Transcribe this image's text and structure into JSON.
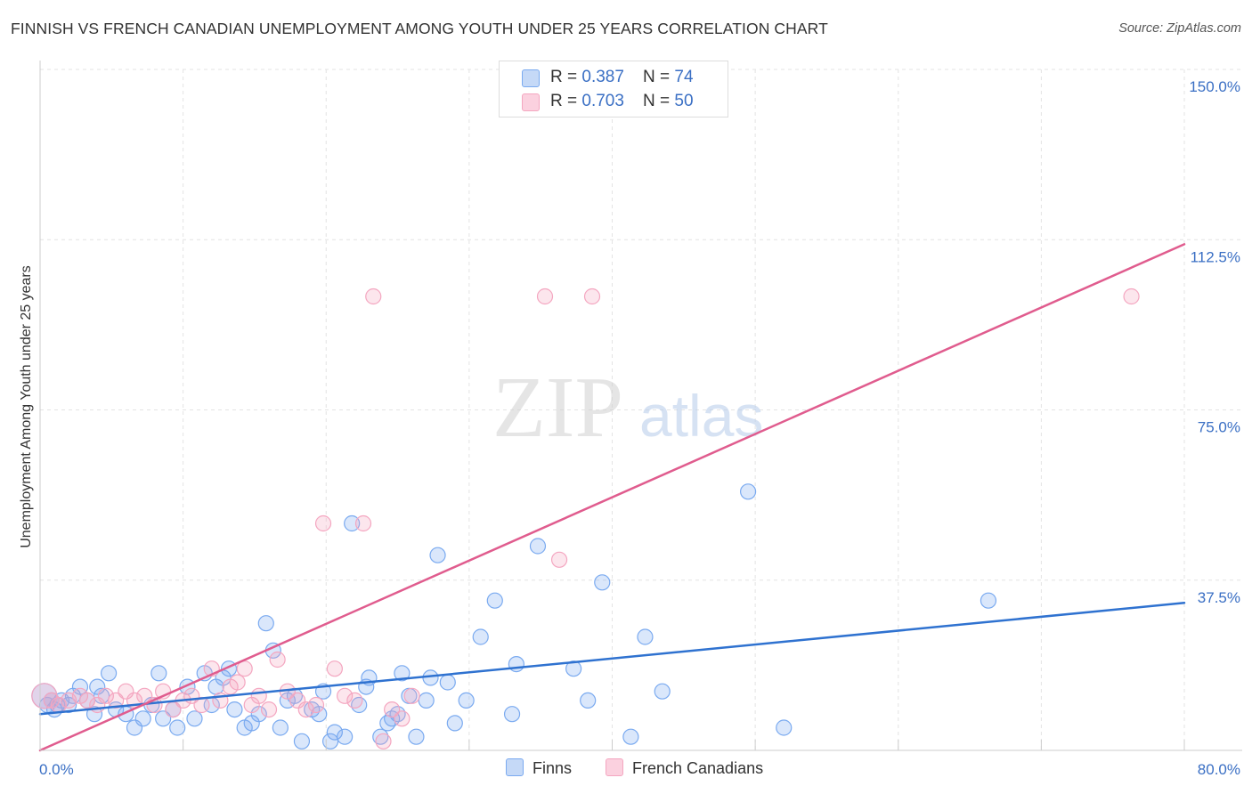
{
  "title": "FINNISH VS FRENCH CANADIAN UNEMPLOYMENT AMONG YOUTH UNDER 25 YEARS CORRELATION CHART",
  "source": "Source: ZipAtlas.com",
  "watermark": {
    "zip": "ZIP",
    "atlas": "atlas"
  },
  "legend": {
    "rows": [
      {
        "r_label": "R = ",
        "r_value": "0.387",
        "n_label": "N = ",
        "n_value": "74"
      },
      {
        "r_label": "R = ",
        "r_value": "0.703",
        "n_label": "N = ",
        "n_value": "50"
      }
    ]
  },
  "bottom_legend": [
    "Finns",
    "French Canadians"
  ],
  "chart_data": {
    "type": "scatter",
    "title": "FINNISH VS FRENCH CANADIAN UNEMPLOYMENT AMONG YOUTH UNDER 25 YEARS CORRELATION CHART",
    "xlabel": "",
    "ylabel": "Unemployment Among Youth under 25 years",
    "xlim": [
      0,
      80
    ],
    "ylim": [
      0,
      150
    ],
    "x_tick_labels": [
      "0.0%",
      "80.0%"
    ],
    "y_ticks": [
      37.5,
      75.0,
      112.5,
      150.0
    ],
    "y_tick_labels": [
      "37.5%",
      "75.0%",
      "112.5%",
      "150.0%"
    ],
    "grid": true,
    "legend_position": "top-center",
    "series": [
      {
        "name": "Finns",
        "color": "#7aaaf0",
        "line_color": "#2f72d0",
        "R": 0.387,
        "N": 74,
        "trend": [
          [
            0,
            8.0
          ],
          [
            80,
            32.5
          ]
        ],
        "points": [
          [
            0.3,
            12
          ],
          [
            0.5,
            10
          ],
          [
            0.8,
            11
          ],
          [
            1.0,
            9
          ],
          [
            1.2,
            10
          ],
          [
            1.5,
            11
          ],
          [
            2.0,
            10
          ],
          [
            2.3,
            12
          ],
          [
            2.8,
            14
          ],
          [
            3.3,
            11
          ],
          [
            3.8,
            8
          ],
          [
            4.0,
            14
          ],
          [
            4.3,
            12
          ],
          [
            4.8,
            17
          ],
          [
            5.3,
            9
          ],
          [
            6.0,
            8
          ],
          [
            6.6,
            5
          ],
          [
            7.2,
            7
          ],
          [
            7.8,
            10
          ],
          [
            8.3,
            17
          ],
          [
            8.6,
            7
          ],
          [
            9.3,
            9
          ],
          [
            9.6,
            5
          ],
          [
            10.3,
            14
          ],
          [
            10.8,
            7
          ],
          [
            11.5,
            17
          ],
          [
            12.0,
            10
          ],
          [
            12.3,
            14
          ],
          [
            12.8,
            16
          ],
          [
            13.2,
            18
          ],
          [
            13.6,
            9
          ],
          [
            14.3,
            5
          ],
          [
            14.8,
            6
          ],
          [
            15.3,
            8
          ],
          [
            15.8,
            28
          ],
          [
            16.3,
            22
          ],
          [
            16.8,
            5
          ],
          [
            17.3,
            11
          ],
          [
            17.8,
            12
          ],
          [
            18.3,
            2
          ],
          [
            19.0,
            9
          ],
          [
            19.5,
            8
          ],
          [
            19.8,
            13
          ],
          [
            20.3,
            2
          ],
          [
            20.6,
            4
          ],
          [
            21.3,
            3
          ],
          [
            21.8,
            50
          ],
          [
            22.3,
            10
          ],
          [
            22.8,
            14
          ],
          [
            23.0,
            16
          ],
          [
            23.8,
            3
          ],
          [
            24.3,
            6
          ],
          [
            24.6,
            7
          ],
          [
            25.0,
            8
          ],
          [
            25.3,
            17
          ],
          [
            25.8,
            12
          ],
          [
            26.3,
            3
          ],
          [
            27.0,
            11
          ],
          [
            27.3,
            16
          ],
          [
            27.8,
            43
          ],
          [
            28.5,
            15
          ],
          [
            29.0,
            6
          ],
          [
            29.8,
            11
          ],
          [
            30.8,
            25
          ],
          [
            31.8,
            33
          ],
          [
            33.0,
            8
          ],
          [
            33.3,
            19
          ],
          [
            34.8,
            45
          ],
          [
            37.3,
            18
          ],
          [
            38.3,
            11
          ],
          [
            39.3,
            37
          ],
          [
            41.3,
            3
          ],
          [
            42.3,
            25
          ],
          [
            43.5,
            13
          ],
          [
            49.5,
            57
          ],
          [
            52.0,
            5
          ],
          [
            66.3,
            33
          ]
        ]
      },
      {
        "name": "French Canadians",
        "color": "#f4a6c0",
        "line_color": "#e05c8e",
        "R": 0.703,
        "N": 50,
        "trend": [
          [
            0,
            0.0
          ],
          [
            80,
            111.5
          ]
        ],
        "points": [
          [
            0.3,
            12
          ],
          [
            0.8,
            11
          ],
          [
            1.3,
            10
          ],
          [
            2.0,
            11
          ],
          [
            2.8,
            12
          ],
          [
            3.3,
            11
          ],
          [
            4.0,
            10
          ],
          [
            4.6,
            12
          ],
          [
            5.3,
            11
          ],
          [
            6.0,
            13
          ],
          [
            6.6,
            11
          ],
          [
            7.3,
            12
          ],
          [
            8.0,
            10
          ],
          [
            8.6,
            13
          ],
          [
            9.3,
            9
          ],
          [
            10.0,
            11
          ],
          [
            10.6,
            12
          ],
          [
            11.3,
            10
          ],
          [
            12.0,
            18
          ],
          [
            12.6,
            11
          ],
          [
            13.3,
            14
          ],
          [
            13.8,
            15
          ],
          [
            14.3,
            18
          ],
          [
            14.8,
            10
          ],
          [
            15.3,
            12
          ],
          [
            16.0,
            9
          ],
          [
            16.6,
            20
          ],
          [
            17.3,
            13
          ],
          [
            18.0,
            11
          ],
          [
            18.6,
            9
          ],
          [
            19.3,
            10
          ],
          [
            19.8,
            50
          ],
          [
            20.6,
            18
          ],
          [
            21.3,
            12
          ],
          [
            22.0,
            11
          ],
          [
            22.6,
            50
          ],
          [
            23.3,
            100
          ],
          [
            24.0,
            2
          ],
          [
            24.6,
            9
          ],
          [
            25.3,
            7
          ],
          [
            26.0,
            12
          ],
          [
            35.3,
            100
          ],
          [
            36.3,
            42
          ],
          [
            38.6,
            100
          ],
          [
            76.3,
            100
          ]
        ]
      }
    ]
  }
}
